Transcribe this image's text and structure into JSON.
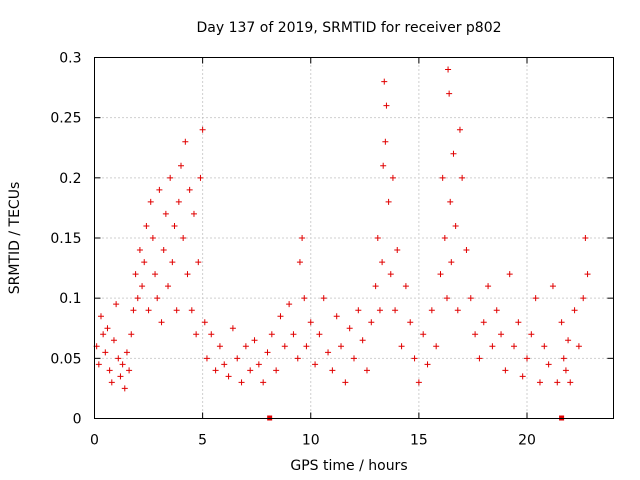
{
  "chart_data": {
    "type": "scatter",
    "title": "Day 137 of 2019, SRMTID for receiver p802",
    "xlabel": "GPS time / hours",
    "ylabel": "SRMTID / TECUs",
    "xlim": [
      0,
      24
    ],
    "ylim": [
      0,
      0.3
    ],
    "x_ticks": [
      0,
      5,
      10,
      15,
      20
    ],
    "y_ticks": [
      0,
      0.05,
      0.1,
      0.15,
      0.2,
      0.25,
      0.3
    ],
    "x_tick_labels": [
      "0",
      "5",
      "10",
      "15",
      "20"
    ],
    "y_tick_labels": [
      "0",
      "0.05",
      "0.1",
      "0.15",
      "0.2",
      "0.25",
      "0.3"
    ],
    "grid": true,
    "marker": "+",
    "color": "#e00000",
    "baseline_markers_x": [
      8.1,
      21.6
    ],
    "series": [
      {
        "name": "SRMTID",
        "x": [
          0.1,
          0.2,
          0.3,
          0.4,
          0.5,
          0.6,
          0.7,
          0.8,
          0.9,
          1.0,
          1.1,
          1.2,
          1.3,
          1.4,
          1.5,
          1.6,
          1.7,
          1.8,
          1.9,
          2.0,
          2.1,
          2.2,
          2.3,
          2.4,
          2.5,
          2.6,
          2.7,
          2.8,
          2.9,
          3.0,
          3.1,
          3.2,
          3.3,
          3.4,
          3.5,
          3.6,
          3.7,
          3.8,
          3.9,
          4.0,
          4.1,
          4.2,
          4.3,
          4.4,
          4.5,
          4.6,
          4.7,
          4.8,
          4.9,
          5.0,
          5.1,
          5.2,
          5.4,
          5.6,
          5.8,
          6.0,
          6.2,
          6.4,
          6.6,
          6.8,
          7.0,
          7.2,
          7.4,
          7.6,
          7.8,
          8.0,
          8.2,
          8.4,
          8.6,
          8.8,
          9.0,
          9.2,
          9.4,
          9.5,
          9.6,
          9.7,
          9.8,
          10.0,
          10.2,
          10.4,
          10.6,
          10.8,
          11.0,
          11.2,
          11.4,
          11.6,
          11.8,
          12.0,
          12.2,
          12.4,
          12.6,
          12.8,
          13.0,
          13.1,
          13.2,
          13.3,
          13.35,
          13.4,
          13.45,
          13.5,
          13.6,
          13.7,
          13.8,
          13.9,
          14.0,
          14.2,
          14.4,
          14.6,
          14.8,
          15.0,
          15.2,
          15.4,
          15.6,
          15.8,
          16.0,
          16.1,
          16.2,
          16.3,
          16.35,
          16.4,
          16.45,
          16.5,
          16.6,
          16.7,
          16.8,
          16.9,
          17.0,
          17.2,
          17.4,
          17.6,
          17.8,
          18.0,
          18.2,
          18.4,
          18.6,
          18.8,
          19.0,
          19.2,
          19.4,
          19.6,
          19.8,
          20.0,
          20.2,
          20.4,
          20.6,
          20.8,
          21.0,
          21.2,
          21.4,
          21.6,
          21.7,
          21.8,
          21.9,
          22.0,
          22.2,
          22.4,
          22.6,
          22.7,
          22.8
        ],
        "y": [
          0.06,
          0.045,
          0.085,
          0.07,
          0.055,
          0.075,
          0.04,
          0.03,
          0.065,
          0.095,
          0.05,
          0.035,
          0.045,
          0.025,
          0.055,
          0.04,
          0.07,
          0.09,
          0.12,
          0.1,
          0.14,
          0.11,
          0.13,
          0.16,
          0.09,
          0.18,
          0.15,
          0.12,
          0.1,
          0.19,
          0.08,
          0.14,
          0.17,
          0.11,
          0.2,
          0.13,
          0.16,
          0.09,
          0.18,
          0.21,
          0.15,
          0.23,
          0.12,
          0.19,
          0.09,
          0.17,
          0.07,
          0.13,
          0.2,
          0.24,
          0.08,
          0.05,
          0.07,
          0.04,
          0.06,
          0.045,
          0.035,
          0.075,
          0.05,
          0.03,
          0.06,
          0.04,
          0.065,
          0.045,
          0.03,
          0.055,
          0.07,
          0.04,
          0.085,
          0.06,
          0.095,
          0.07,
          0.05,
          0.13,
          0.15,
          0.1,
          0.06,
          0.08,
          0.045,
          0.07,
          0.1,
          0.055,
          0.04,
          0.085,
          0.06,
          0.03,
          0.075,
          0.05,
          0.09,
          0.065,
          0.04,
          0.08,
          0.11,
          0.15,
          0.09,
          0.13,
          0.21,
          0.28,
          0.23,
          0.26,
          0.18,
          0.12,
          0.2,
          0.09,
          0.14,
          0.06,
          0.11,
          0.08,
          0.05,
          0.03,
          0.07,
          0.045,
          0.09,
          0.06,
          0.12,
          0.2,
          0.15,
          0.1,
          0.29,
          0.27,
          0.18,
          0.13,
          0.22,
          0.16,
          0.09,
          0.24,
          0.2,
          0.14,
          0.1,
          0.07,
          0.05,
          0.08,
          0.11,
          0.06,
          0.09,
          0.07,
          0.04,
          0.12,
          0.06,
          0.08,
          0.035,
          0.05,
          0.07,
          0.1,
          0.03,
          0.06,
          0.045,
          0.11,
          0.03,
          0.08,
          0.05,
          0.04,
          0.065,
          0.03,
          0.09,
          0.06,
          0.1,
          0.15,
          0.12
        ]
      }
    ]
  }
}
